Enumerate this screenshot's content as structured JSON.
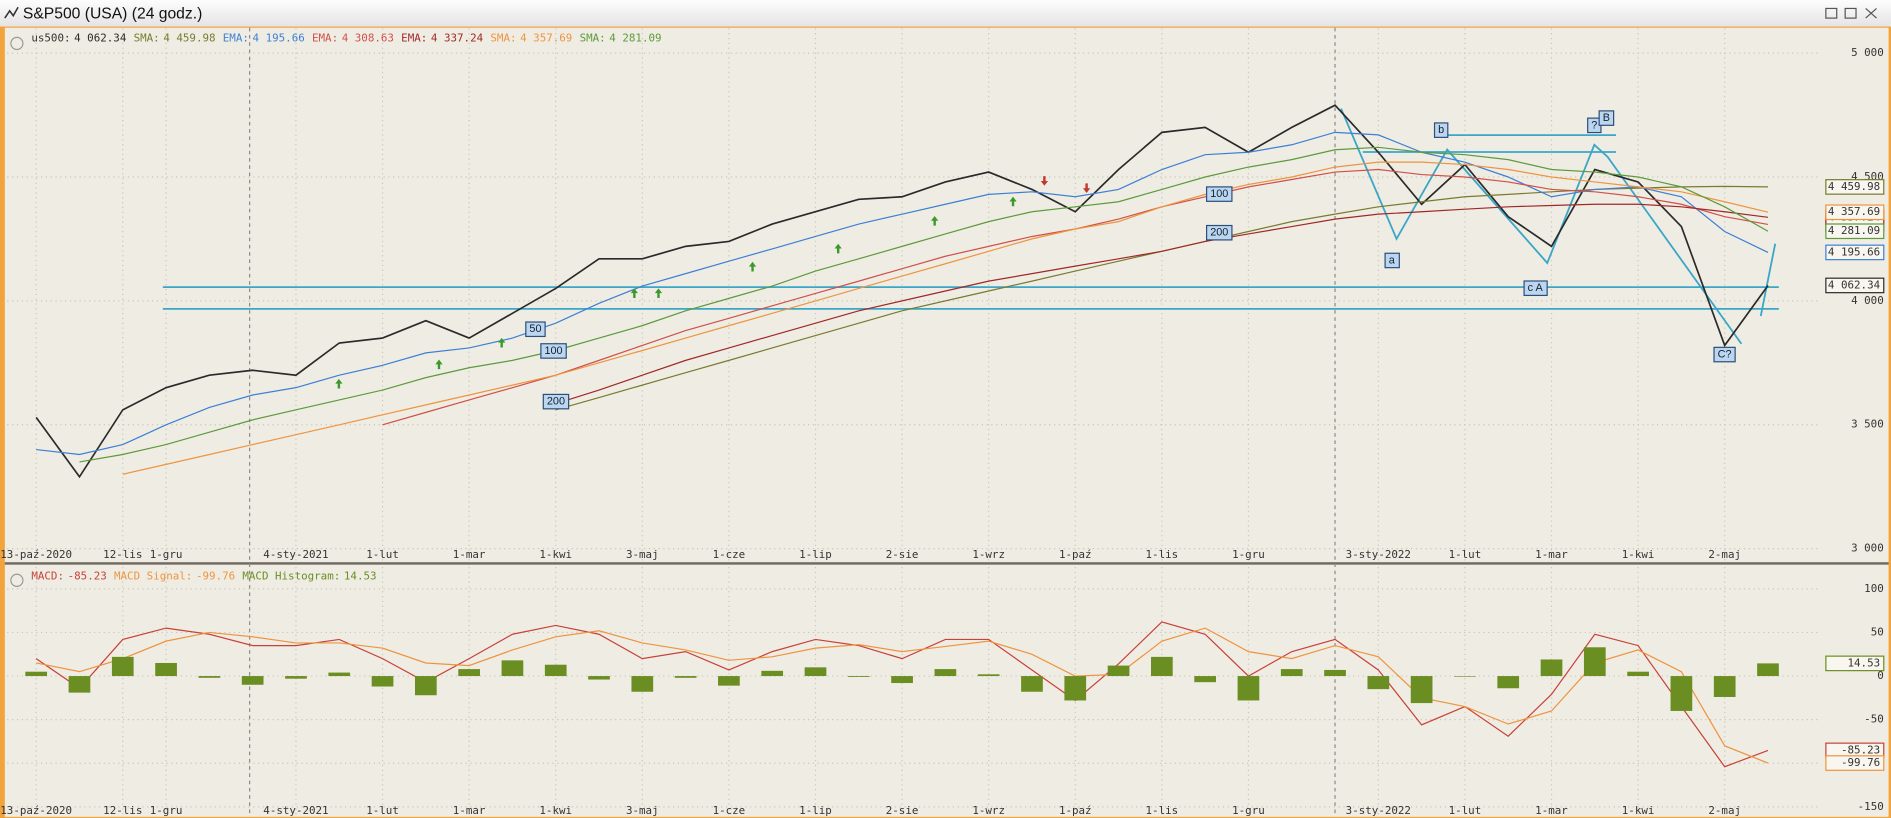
{
  "window_title": "S&P500 (USA) (24 godz.)",
  "chart_data": [
    {
      "type": "line",
      "categories": [
        "13-paź-2020",
        null,
        "12-lis",
        "1-gru",
        null,
        null,
        "4-sty-2021",
        null,
        "1-lut",
        null,
        "1-mar",
        null,
        "1-kwi",
        null,
        "3-maj",
        null,
        "1-cze",
        null,
        "1-lip",
        null,
        "2-sie",
        null,
        "1-wrz",
        null,
        "1-paź",
        null,
        "1-lis",
        null,
        "1-gru",
        null,
        null,
        "3-sty-2022",
        null,
        "1-lut",
        null,
        "1-mar",
        null,
        "1-kwi",
        null,
        "2-maj",
        null
      ],
      "series": [
        {
          "name": "us500:",
          "color": "#2a2a2a",
          "last_value_label": "4 062.34",
          "values": [
            3530,
            3290,
            3560,
            3650,
            3700,
            3720,
            3700,
            3830,
            3850,
            3920,
            3850,
            3950,
            4050,
            4170,
            4170,
            4220,
            4240,
            4310,
            4360,
            4410,
            4420,
            4480,
            4520,
            4450,
            4360,
            4530,
            4680,
            4700,
            4600,
            4700,
            4790,
            4600,
            4390,
            4550,
            4340,
            4220,
            4530,
            4480,
            4300,
            3820,
            4062.34
          ]
        },
        {
          "name": "SMA:",
          "color": "#7a7a30",
          "last_value_label": "4 459.98",
          "values": [
            null,
            null,
            null,
            null,
            null,
            null,
            null,
            null,
            null,
            null,
            null,
            null,
            3560,
            3610,
            3660,
            3710,
            3760,
            3810,
            3860,
            3910,
            3960,
            4000,
            4040,
            4080,
            4120,
            4160,
            4200,
            4240,
            4280,
            4320,
            4350,
            4380,
            4400,
            4420,
            4430,
            4440,
            4450,
            4455,
            4460,
            4462,
            4459.98
          ]
        },
        {
          "name": "EMA:",
          "color": "#3d7fd6",
          "last_value_label": "4 195.66",
          "values": [
            3400,
            3380,
            3420,
            3500,
            3570,
            3620,
            3650,
            3700,
            3740,
            3790,
            3810,
            3850,
            3910,
            3990,
            4060,
            4110,
            4160,
            4210,
            4260,
            4310,
            4350,
            4390,
            4430,
            4440,
            4420,
            4450,
            4530,
            4590,
            4600,
            4630,
            4680,
            4670,
            4600,
            4560,
            4500,
            4420,
            4450,
            4460,
            4420,
            4280,
            4195.66
          ]
        },
        {
          "name": "EMA:",
          "color": "#d0504a",
          "last_value_label": "4 308.63",
          "values": [
            null,
            null,
            null,
            null,
            null,
            null,
            null,
            null,
            3500,
            3550,
            3600,
            3650,
            3700,
            3760,
            3820,
            3880,
            3930,
            3980,
            4030,
            4080,
            4130,
            4180,
            4220,
            4260,
            4290,
            4330,
            4380,
            4420,
            4460,
            4490,
            4520,
            4530,
            4510,
            4500,
            4480,
            4450,
            4440,
            4420,
            4390,
            4340,
            4308.63
          ]
        },
        {
          "name": "EMA:",
          "color": "#a02828",
          "last_value_label": "4 337.24",
          "values": [
            null,
            null,
            null,
            null,
            null,
            null,
            null,
            null,
            null,
            null,
            null,
            null,
            3585,
            3640,
            3700,
            3760,
            3810,
            3860,
            3910,
            3960,
            4000,
            4040,
            4080,
            4110,
            4140,
            4170,
            4200,
            4240,
            4270,
            4300,
            4330,
            4350,
            4360,
            4370,
            4380,
            4385,
            4390,
            4390,
            4380,
            4360,
            4337.24
          ]
        },
        {
          "name": "SMA:",
          "color": "#ee9440",
          "last_value_label": "4 357.69",
          "values": [
            null,
            null,
            3300,
            3340,
            3380,
            3420,
            3460,
            3500,
            3540,
            3580,
            3620,
            3660,
            3700,
            3750,
            3800,
            3850,
            3900,
            3950,
            4000,
            4050,
            4100,
            4150,
            4200,
            4250,
            4290,
            4320,
            4380,
            4430,
            4470,
            4500,
            4540,
            4560,
            4560,
            4550,
            4530,
            4500,
            4480,
            4460,
            4440,
            4400,
            4357.69
          ]
        },
        {
          "name": "SMA:",
          "color": "#5c9a3c",
          "last_value_label": "4 281.09",
          "values": [
            null,
            3350,
            3380,
            3420,
            3470,
            3520,
            3560,
            3600,
            3640,
            3690,
            3730,
            3760,
            3800,
            3850,
            3900,
            3960,
            4010,
            4060,
            4120,
            4170,
            4220,
            4270,
            4320,
            4360,
            4380,
            4400,
            4450,
            4500,
            4540,
            4570,
            4610,
            4620,
            4600,
            4590,
            4570,
            4530,
            4520,
            4500,
            4460,
            4380,
            4281.09
          ]
        }
      ],
      "ylim": [
        2950,
        5100
      ],
      "yticks": [
        {
          "value": 5000,
          "label": "5 000"
        },
        {
          "value": 4500,
          "label": "4 500"
        },
        {
          "value": 4000,
          "label": "4 000"
        },
        {
          "value": 3500,
          "label": "3 500"
        },
        {
          "value": 3000,
          "label": "3 000"
        }
      ],
      "grid": true,
      "annotations": [
        "50",
        "100",
        "200",
        "100",
        "200",
        "a",
        "b",
        "c A",
        "?",
        "B",
        "C?"
      ]
    },
    {
      "type": "line",
      "categories": [
        "13-paź-2020",
        null,
        "12-lis",
        "1-gru",
        null,
        null,
        "4-sty-2021",
        null,
        "1-lut",
        null,
        "1-mar",
        null,
        "1-kwi",
        null,
        "3-maj",
        null,
        "1-cze",
        null,
        "1-lip",
        null,
        "2-sie",
        null,
        "1-wrz",
        null,
        "1-paź",
        null,
        "1-lis",
        null,
        "1-gru",
        null,
        null,
        "3-sty-2022",
        null,
        "1-lut",
        null,
        "1-mar",
        null,
        "1-kwi",
        null,
        "2-maj",
        null
      ],
      "series": [
        {
          "name": "MACD:",
          "color": "#c8413a",
          "values": [
            20,
            -14,
            42,
            55,
            48,
            35,
            35,
            42,
            20,
            -7,
            20,
            48,
            58,
            48,
            20,
            28,
            7,
            28,
            42,
            35,
            20,
            42,
            42,
            7,
            -28,
            14,
            62,
            48,
            0,
            28,
            42,
            7,
            -56,
            -35,
            -69,
            -21,
            48,
            35,
            -35,
            -104,
            -85.23
          ]
        },
        {
          "name": "MACD Signal:",
          "color": "#ee9440",
          "values": [
            15,
            5,
            20,
            40,
            50,
            45,
            38,
            38,
            32,
            15,
            12,
            30,
            45,
            52,
            38,
            30,
            18,
            22,
            32,
            36,
            28,
            34,
            40,
            25,
            0,
            2,
            40,
            55,
            28,
            20,
            35,
            22,
            -25,
            -35,
            -55,
            -40,
            15,
            30,
            5,
            -80,
            -99.76
          ]
        },
        {
          "name": "MACD Histogram:",
          "color": "#6b8e23",
          "type": "bar",
          "values": [
            5,
            -19,
            22,
            15,
            -2,
            -10,
            -3,
            4,
            -12,
            -22,
            8,
            18,
            13,
            -4,
            -18,
            -2,
            -11,
            6,
            10,
            -1,
            -8,
            8,
            2,
            -18,
            -28,
            12,
            22,
            -7,
            -28,
            8,
            7,
            -15,
            -31,
            0,
            -14,
            19,
            33,
            5,
            -40,
            -24,
            14.53
          ]
        }
      ],
      "ylim": [
        -160,
        125
      ],
      "yticks": [
        100,
        50,
        0,
        -50,
        -100,
        -150
      ],
      "grid": true
    }
  ]
}
